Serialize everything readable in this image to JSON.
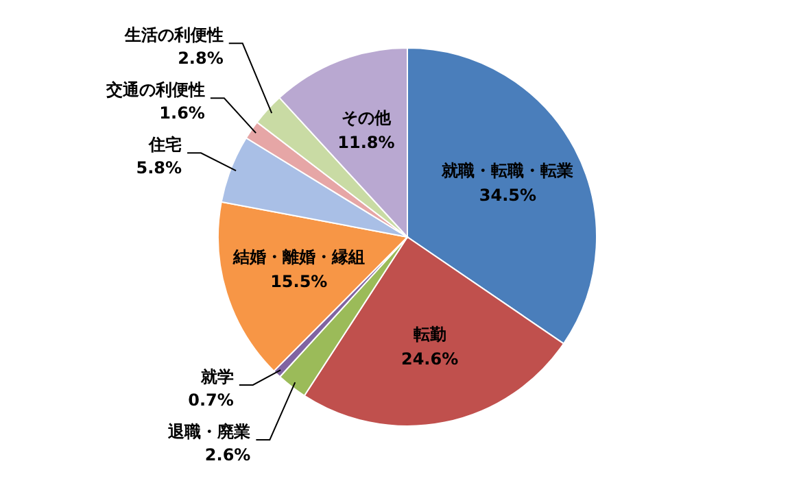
{
  "chart_data": {
    "type": "pie",
    "categories": [
      "就職・転職・転業",
      "転勤",
      "退職・廃業",
      "就学",
      "結婚・離婚・縁組",
      "住宅",
      "交通の利便性",
      "生活の利便性",
      "その他"
    ],
    "values": [
      34.5,
      24.6,
      2.6,
      0.7,
      15.5,
      5.8,
      1.6,
      2.8,
      11.8
    ],
    "value_labels": [
      "34.5%",
      "24.6%",
      "2.6%",
      "0.7%",
      "15.5%",
      "5.8%",
      "1.6%",
      "2.8%",
      "11.8%"
    ],
    "colors": [
      "#4a7ebb",
      "#c0504d",
      "#9bbb59",
      "#8064a2",
      "#f79646",
      "#a9bfe6",
      "#e6a6a6",
      "#c9dba4",
      "#b9a8d1"
    ]
  }
}
